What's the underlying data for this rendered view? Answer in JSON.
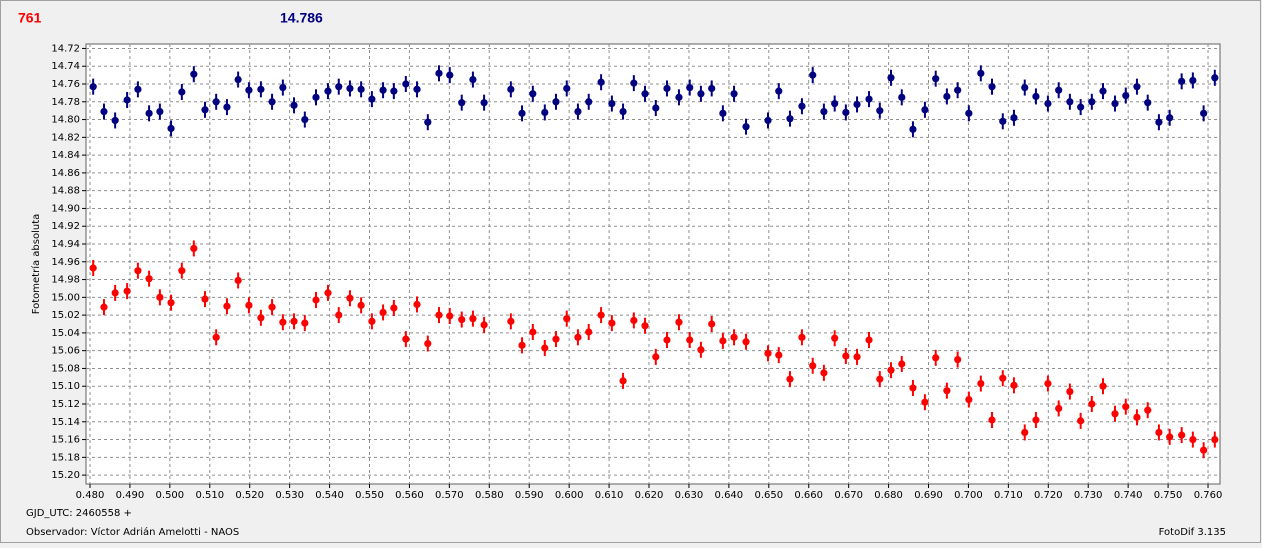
{
  "chart_data": {
    "type": "scatter",
    "annotations": [
      {
        "text": "761",
        "color": "#ff0000"
      },
      {
        "text": "14.786",
        "color": "#000080"
      }
    ],
    "xlabel": "GJD_UTC: 2460558 +",
    "ylabel": "Fotometría absoluta",
    "footer_left": "Observador: Víctor Adrián Amelotti - NAOS",
    "footer_right": "FotoDif 3.135",
    "grid": true,
    "y_inverted": true,
    "xlim": [
      0.479,
      0.763
    ],
    "ylim": [
      14.715,
      15.21
    ],
    "xticks": [
      {
        "value": 0.48,
        "label": "0.480"
      },
      {
        "value": 0.49,
        "label": "0.490"
      },
      {
        "value": 0.5,
        "label": "0.500"
      },
      {
        "value": 0.51,
        "label": "0.510"
      },
      {
        "value": 0.52,
        "label": "0.520"
      },
      {
        "value": 0.53,
        "label": "0.530"
      },
      {
        "value": 0.54,
        "label": "0.540"
      },
      {
        "value": 0.55,
        "label": "0.550"
      },
      {
        "value": 0.56,
        "label": "0.560"
      },
      {
        "value": 0.57,
        "label": "0.570"
      },
      {
        "value": 0.58,
        "label": "0.580"
      },
      {
        "value": 0.59,
        "label": "0.590"
      },
      {
        "value": 0.6,
        "label": "0.600"
      },
      {
        "value": 0.61,
        "label": "0.610"
      },
      {
        "value": 0.62,
        "label": "0.620"
      },
      {
        "value": 0.63,
        "label": "0.630"
      },
      {
        "value": 0.64,
        "label": "0.640"
      },
      {
        "value": 0.65,
        "label": "0.650"
      },
      {
        "value": 0.66,
        "label": "0.660"
      },
      {
        "value": 0.67,
        "label": "0.670"
      },
      {
        "value": 0.68,
        "label": "0.680"
      },
      {
        "value": 0.69,
        "label": "0.690"
      },
      {
        "value": 0.7,
        "label": "0.700"
      },
      {
        "value": 0.71,
        "label": "0.710"
      },
      {
        "value": 0.72,
        "label": "0.720"
      },
      {
        "value": 0.73,
        "label": "0.730"
      },
      {
        "value": 0.74,
        "label": "0.740"
      },
      {
        "value": 0.75,
        "label": "0.750"
      },
      {
        "value": 0.76,
        "label": "0.760"
      }
    ],
    "yticks": [
      {
        "value": 14.72,
        "label": "14.72"
      },
      {
        "value": 14.74,
        "label": "14.74"
      },
      {
        "value": 14.76,
        "label": "14.76"
      },
      {
        "value": 14.78,
        "label": "14.78"
      },
      {
        "value": 14.8,
        "label": "14.80"
      },
      {
        "value": 14.82,
        "label": "14.82"
      },
      {
        "value": 14.84,
        "label": "14.84"
      },
      {
        "value": 14.86,
        "label": "14.86"
      },
      {
        "value": 14.88,
        "label": "14.88"
      },
      {
        "value": 14.9,
        "label": "14.90"
      },
      {
        "value": 14.92,
        "label": "14.92"
      },
      {
        "value": 14.94,
        "label": "14.94"
      },
      {
        "value": 14.96,
        "label": "14.96"
      },
      {
        "value": 14.98,
        "label": "14.98"
      },
      {
        "value": 15.0,
        "label": "15.00"
      },
      {
        "value": 15.02,
        "label": "15.02"
      },
      {
        "value": 15.04,
        "label": "15.04"
      },
      {
        "value": 15.06,
        "label": "15.06"
      },
      {
        "value": 15.08,
        "label": "15.08"
      },
      {
        "value": 15.1,
        "label": "15.10"
      },
      {
        "value": 15.12,
        "label": "15.12"
      },
      {
        "value": 15.14,
        "label": "15.14"
      },
      {
        "value": 15.16,
        "label": "15.16"
      },
      {
        "value": 15.18,
        "label": "15.18"
      },
      {
        "value": 15.2,
        "label": "15.20"
      }
    ],
    "x": [
      0.4808,
      0.4835,
      0.4863,
      0.4893,
      0.492,
      0.4948,
      0.4975,
      0.5003,
      0.503,
      0.506,
      0.5088,
      0.5116,
      0.5143,
      0.5171,
      0.5198,
      0.5228,
      0.5256,
      0.5283,
      0.5311,
      0.5338,
      0.5366,
      0.5396,
      0.5423,
      0.5451,
      0.5479,
      0.5506,
      0.5534,
      0.5561,
      0.5591,
      0.5619,
      0.5646,
      0.5674,
      0.5701,
      0.5731,
      0.5759,
      0.5787,
      0.5854,
      0.5882,
      0.5909,
      0.5939,
      0.5967,
      0.5994,
      0.6022,
      0.6049,
      0.608,
      0.6107,
      0.6135,
      0.6162,
      0.619,
      0.6217,
      0.6245,
      0.6275,
      0.6302,
      0.633,
      0.6357,
      0.6385,
      0.6413,
      0.6443,
      0.6498,
      0.6525,
      0.6553,
      0.6583,
      0.661,
      0.6638,
      0.6665,
      0.6693,
      0.6721,
      0.6751,
      0.6778,
      0.6806,
      0.6833,
      0.6861,
      0.6891,
      0.6918,
      0.6946,
      0.6973,
      0.7001,
      0.7031,
      0.7059,
      0.7086,
      0.7114,
      0.7141,
      0.7169,
      0.7199,
      0.7226,
      0.7254,
      0.7281,
      0.7309,
      0.7337,
      0.7367,
      0.7394,
      0.7422,
      0.7449,
      0.7477,
      0.7504,
      0.7534,
      0.7562,
      0.7589,
      0.7617
    ],
    "series": [
      {
        "color": "#000080",
        "error": 0.009,
        "values": [
          14.763,
          14.791,
          14.801,
          14.778,
          14.766,
          14.793,
          14.791,
          14.81,
          14.769,
          14.749,
          14.789,
          14.78,
          14.786,
          14.755,
          14.767,
          14.766,
          14.78,
          14.764,
          14.784,
          14.8,
          14.775,
          14.768,
          14.763,
          14.765,
          14.766,
          14.777,
          14.767,
          14.768,
          14.76,
          14.766,
          14.803,
          14.748,
          14.75,
          14.781,
          14.755,
          14.781,
          14.766,
          14.793,
          14.771,
          14.792,
          14.78,
          14.765,
          14.791,
          14.78,
          14.758,
          14.782,
          14.791,
          14.759,
          14.771,
          14.787,
          14.765,
          14.775,
          14.764,
          14.771,
          14.765,
          14.793,
          14.771,
          14.808,
          14.801,
          14.768,
          14.799,
          14.785,
          14.75,
          14.791,
          14.782,
          14.792,
          14.783,
          14.777,
          14.79,
          14.753,
          14.775,
          14.811,
          14.789,
          14.754,
          14.774,
          14.767,
          14.793,
          14.748,
          14.763,
          14.802,
          14.798,
          14.764,
          14.774,
          14.782,
          14.767,
          14.78,
          14.786,
          14.78,
          14.768,
          14.782,
          14.773,
          14.763,
          14.781,
          14.803,
          14.798,
          14.757,
          14.756,
          14.793,
          14.753
        ]
      },
      {
        "color": "#ff0000",
        "error": 0.009,
        "values": [
          14.967,
          15.011,
          14.995,
          14.993,
          14.97,
          14.979,
          15.0,
          15.006,
          14.97,
          14.945,
          15.002,
          15.045,
          15.01,
          14.981,
          15.009,
          15.023,
          15.011,
          15.028,
          15.027,
          15.029,
          15.003,
          14.995,
          15.02,
          15.001,
          15.009,
          15.027,
          15.017,
          15.012,
          15.047,
          15.008,
          15.052,
          15.02,
          15.021,
          15.025,
          15.024,
          15.031,
          15.027,
          15.054,
          15.039,
          15.057,
          15.047,
          15.024,
          15.045,
          15.039,
          15.02,
          15.029,
          15.094,
          15.026,
          15.032,
          15.067,
          15.048,
          15.028,
          15.048,
          15.059,
          15.03,
          15.049,
          15.045,
          15.05,
          15.063,
          15.065,
          15.092,
          15.045,
          15.077,
          15.085,
          15.046,
          15.066,
          15.067,
          15.048,
          15.092,
          15.082,
          15.075,
          15.102,
          15.118,
          15.068,
          15.105,
          15.07,
          15.115,
          15.097,
          15.138,
          15.091,
          15.099,
          15.152,
          15.138,
          15.097,
          15.125,
          15.106,
          15.139,
          15.12,
          15.1,
          15.131,
          15.123,
          15.135,
          15.127,
          15.152,
          15.157,
          15.155,
          15.16,
          15.172,
          15.16
        ]
      }
    ]
  }
}
